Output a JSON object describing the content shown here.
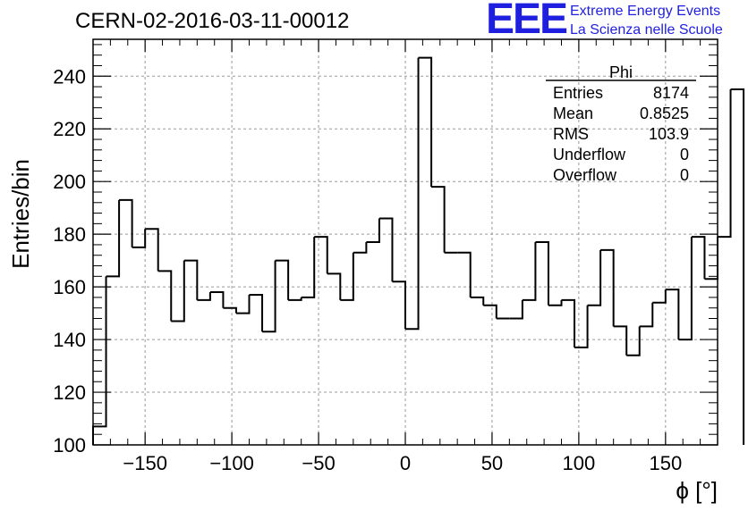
{
  "header": {
    "title": "CERN-02-2016-03-11-00012",
    "logo_mark": "EEE",
    "logo_line1": "Extreme Energy Events",
    "logo_line2": "La Scienza nelle Scuole"
  },
  "colors": {
    "logo": "#1f1fe0",
    "histogram": "#000000",
    "grid": "#999999"
  },
  "stats": {
    "title": "Phi",
    "rows": [
      {
        "label": "Entries",
        "value": "8174"
      },
      {
        "label": "Mean",
        "value": "0.8525"
      },
      {
        "label": "RMS",
        "value": "103.9"
      },
      {
        "label": "Underflow",
        "value": "0"
      },
      {
        "label": "Overflow",
        "value": "0"
      }
    ]
  },
  "chart_data": {
    "type": "bar",
    "style": "step-histogram",
    "title": "",
    "xlabel": "ϕ [°]",
    "ylabel": "Entries/bin",
    "xlim": [
      -180,
      180
    ],
    "ylim": [
      100,
      254
    ],
    "grid": true,
    "x_ticks": [
      -150,
      -100,
      -50,
      0,
      50,
      100,
      150
    ],
    "x_tick_labels": [
      "−150",
      "−100",
      "−50",
      "0",
      "50",
      "100",
      "150"
    ],
    "y_ticks": [
      100,
      120,
      140,
      160,
      180,
      200,
      220,
      240
    ],
    "y_tick_labels": [
      "100",
      "120",
      "140",
      "160",
      "180",
      "200",
      "220",
      "240"
    ],
    "bin_edges_start": -180,
    "bin_width": 7.5,
    "values": [
      107,
      164,
      193,
      175,
      182,
      166,
      147,
      170,
      155,
      158,
      152,
      150,
      157,
      143,
      170,
      155,
      156,
      179,
      165,
      155,
      173,
      177,
      186,
      162,
      144,
      247,
      198,
      173,
      173,
      156,
      153,
      148,
      148,
      155,
      177,
      153,
      155,
      137,
      153,
      174,
      145,
      134,
      145,
      154,
      159,
      140,
      179,
      163,
      179,
      235
    ]
  }
}
